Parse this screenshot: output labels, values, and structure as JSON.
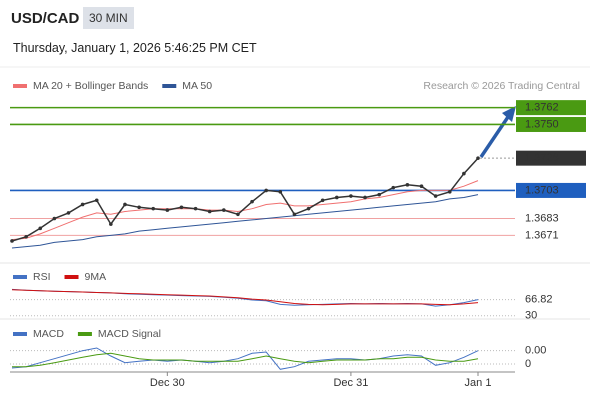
{
  "header": {
    "symbol": "USD/CAD",
    "interval": "30 MIN",
    "datetime": "Thursday, January 1, 2026 5:46:25 PM CET",
    "attribution": "Research © 2026 Trading Central"
  },
  "chart_data": [
    {
      "type": "line",
      "color": "#333333",
      "values": [
        1.3667,
        1.367,
        1.3676,
        1.3683,
        1.3687,
        1.3693,
        1.3696,
        1.3679,
        1.3693,
        1.3691,
        1.369,
        1.3689,
        1.3691,
        1.369,
        1.3688,
        1.3689,
        1.3686,
        1.3695,
        1.3703,
        1.3702,
        1.3686,
        1.369,
        1.3696,
        1.3698,
        1.3699,
        1.3698,
        1.37,
        1.3705,
        1.3707,
        1.3706,
        1.3699,
        1.3702,
        1.3715,
        1.3726
      ],
      "series": [
        {
          "name": "MA 20 + Bollinger Bands",
          "color": "#f07070",
          "values": [
            1.3668,
            1.3669,
            1.3672,
            1.3676,
            1.368,
            1.3684,
            1.3687,
            1.3686,
            1.3688,
            1.3689,
            1.369,
            1.369,
            1.369,
            1.369,
            1.3689,
            1.3689,
            1.3688,
            1.369,
            1.3693,
            1.3694,
            1.3692,
            1.3692,
            1.3693,
            1.3694,
            1.3695,
            1.3697,
            1.3698,
            1.37,
            1.3702,
            1.3703,
            1.3703,
            1.3703,
            1.3706,
            1.371
          ]
        },
        {
          "name": "MA 50",
          "color": "#2f5597",
          "values": [
            1.3662,
            1.3663,
            1.3664,
            1.3666,
            1.3667,
            1.3668,
            1.367,
            1.3671,
            1.3672,
            1.3674,
            1.3675,
            1.3676,
            1.3677,
            1.3678,
            1.3679,
            1.368,
            1.3681,
            1.3682,
            1.3683,
            1.3684,
            1.3685,
            1.3686,
            1.3687,
            1.3688,
            1.3689,
            1.369,
            1.3691,
            1.3692,
            1.3693,
            1.3694,
            1.3695,
            1.3697,
            1.3698,
            1.37
          ]
        }
      ],
      "ylim": [
        1.3657,
        1.3771
      ],
      "levels": [
        {
          "value": 1.3762,
          "label": "1.3762",
          "color": "#4a9a12",
          "style": "solid",
          "boxed": true
        },
        {
          "value": 1.375,
          "label": "1.3750",
          "color": "#4a9a12",
          "style": "solid",
          "boxed": true
        },
        {
          "value": 1.3726,
          "label": "1.3726",
          "color": "#333333",
          "style": "dotted",
          "boxed": true
        },
        {
          "value": 1.3703,
          "label": "1.3703",
          "color": "#1f5fbf",
          "style": "solid",
          "boxed": true
        },
        {
          "value": 1.3683,
          "label": "1.3683",
          "color": "#e03030",
          "style": "solid",
          "boxed": false
        },
        {
          "value": 1.3671,
          "label": "1.3671",
          "color": "#e03030",
          "style": "solid",
          "boxed": false
        }
      ]
    },
    {
      "type": "line",
      "series": [
        {
          "name": "RSI",
          "color": "#4472c4",
          "values": [
            90,
            88,
            87,
            86,
            85,
            84,
            83,
            82,
            80,
            79,
            78,
            77,
            76,
            75,
            74,
            72,
            70,
            66,
            64,
            56,
            54,
            55,
            56,
            57,
            58,
            57,
            58,
            57,
            58,
            57,
            52,
            55,
            60,
            66.82
          ]
        },
        {
          "name": "9MA",
          "color": "#d01010",
          "values": [
            89,
            88,
            87,
            86,
            85,
            84,
            83,
            82,
            81,
            80,
            79,
            78,
            77,
            76,
            75,
            73,
            71,
            68,
            66,
            62,
            58,
            56,
            55,
            56,
            57,
            57,
            57,
            57,
            57,
            57,
            56,
            55,
            57,
            60
          ]
        }
      ],
      "ylim": [
        25,
        100
      ],
      "yticks": [
        30,
        66.82
      ]
    },
    {
      "type": "line",
      "categories": [
        null,
        null,
        null,
        null,
        null,
        null,
        null,
        null,
        null,
        null,
        null,
        "Dec 30",
        null,
        null,
        null,
        null,
        null,
        null,
        null,
        null,
        null,
        null,
        null,
        null,
        "Dec 31",
        null,
        null,
        null,
        null,
        null,
        null,
        null,
        null,
        "Jan 1"
      ],
      "series": [
        {
          "name": "MACD",
          "color": "#4472c4",
          "values": [
            -0.0003,
            -0.0002,
            0.0001,
            0.0004,
            0.0007,
            0.001,
            0.0012,
            0.0006,
            0.0001,
            0.0002,
            0.0003,
            0.0002,
            0.0003,
            0.0002,
            0.0001,
            0.0002,
            0.0004,
            0.0008,
            0.0009,
            -0.0004,
            -0.0002,
            0.0002,
            0.0003,
            0.0004,
            0.0004,
            0.0003,
            0.0004,
            0.0006,
            0.0007,
            0.0006,
            -0.0001,
            0.0001,
            0.0005,
            0.001
          ]
        },
        {
          "name": "MACD Signal",
          "color": "#4a9a12",
          "values": [
            -0.0002,
            -0.0002,
            -0.0001,
            0.0001,
            0.0003,
            0.0005,
            0.0007,
            0.0008,
            0.0006,
            0.0004,
            0.0003,
            0.0003,
            0.0003,
            0.0002,
            0.0002,
            0.0002,
            0.0002,
            0.0004,
            0.0006,
            0.0004,
            0.0002,
            0.0001,
            0.0002,
            0.0003,
            0.0003,
            0.0003,
            0.0004,
            0.0004,
            0.0005,
            0.0005,
            0.0003,
            0.0002,
            0.0002,
            0.0004
          ]
        }
      ],
      "ylim": [
        -0.0006,
        0.0018
      ],
      "yticks": [
        {
          "value": 0.001,
          "label": "0.00"
        },
        0
      ]
    }
  ]
}
